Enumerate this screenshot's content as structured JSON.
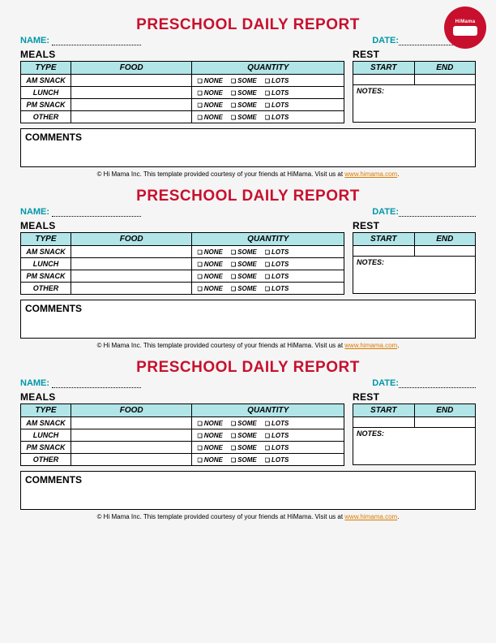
{
  "logo": {
    "brand": "HiMama"
  },
  "title": "PRESCHOOL DAILY REPORT",
  "labels": {
    "name": "NAME:",
    "date": "DATE:",
    "meals": "MEALS",
    "rest": "REST",
    "comments": "COMMENTS",
    "notes": "NOTES:"
  },
  "meals_headers": {
    "type": "TYPE",
    "food": "FOOD",
    "quantity": "QUANTITY"
  },
  "rest_headers": {
    "start": "START",
    "end": "END"
  },
  "meal_rows": [
    "AM SNACK",
    "LUNCH",
    "PM SNACK",
    "OTHER"
  ],
  "qty_options": {
    "none": "NONE",
    "some": "SOME",
    "lots": "LOTS"
  },
  "footer": {
    "prefix": "© Hi Mama Inc.  This template provided courtesy of your friends at HiMama. Visit us at ",
    "link": "www.himama.com",
    "suffix": "."
  },
  "colors": {
    "accent_red": "#c8102e",
    "teal": "#0097a7",
    "header_bg": "#b2e5e8",
    "link": "#d97b00",
    "page_bg": "#f5f5f5"
  }
}
